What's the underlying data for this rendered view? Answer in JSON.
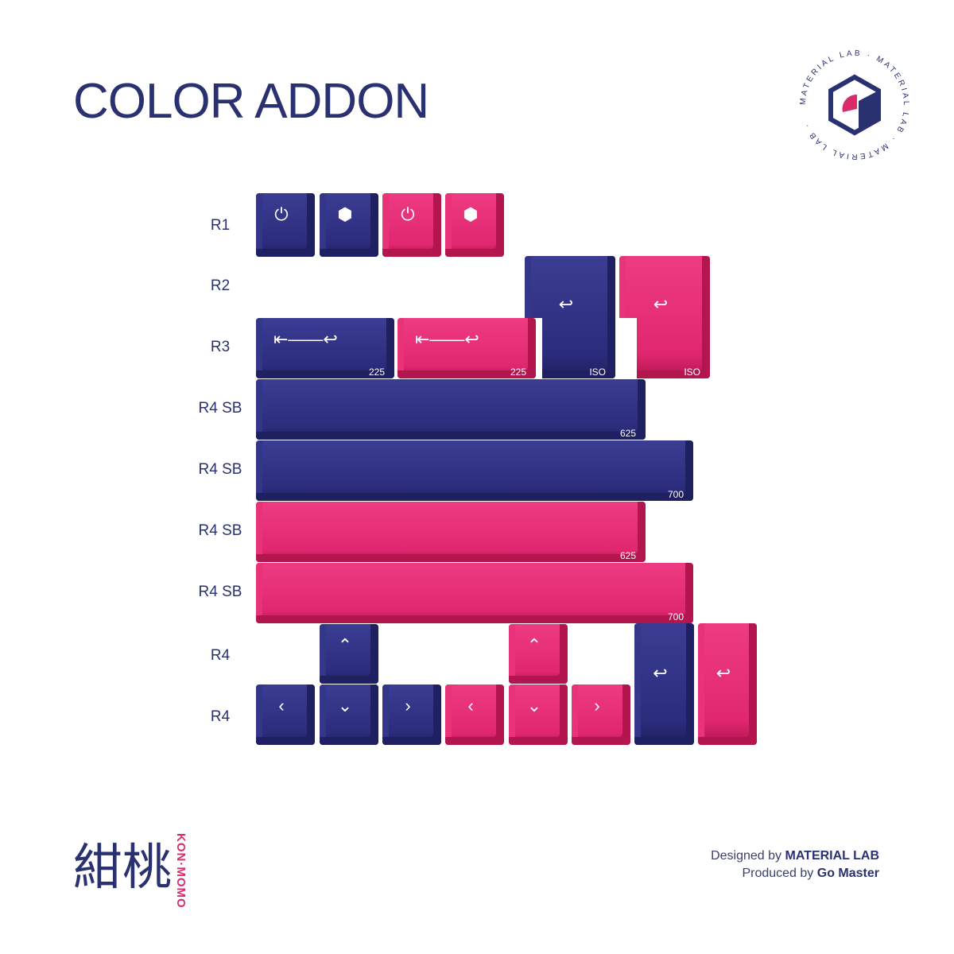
{
  "title": "COLOR ADDON",
  "brand_badge": {
    "ring_text": "MATERIAL LAB · MATERIAL LAB · MATERIAL LAB ·",
    "colors": {
      "navy": "#2a3170",
      "pink": "#d92b6c"
    }
  },
  "colors": {
    "navy_key": "#2b2c7c",
    "pink_key": "#e0276f",
    "text": "#2a3170"
  },
  "row_labels": [
    "R1",
    "R2",
    "R3",
    "R4 SB",
    "R4 SB",
    "R4 SB",
    "R4 SB",
    "R4",
    "R4"
  ],
  "keys": {
    "r1": [
      {
        "color": "navy",
        "icon": "power-timer-icon"
      },
      {
        "color": "navy",
        "icon": "cube-logo-icon"
      },
      {
        "color": "pink",
        "icon": "power-timer-icon"
      },
      {
        "color": "pink",
        "icon": "cube-logo-icon"
      }
    ],
    "r3_225_navy": {
      "icon": "long-enter-arrow-icon",
      "label": "225"
    },
    "r3_225_pink": {
      "icon": "long-enter-arrow-icon",
      "label": "225"
    },
    "iso_navy": {
      "icon": "enter-arrow-icon",
      "label": "ISO"
    },
    "iso_pink": {
      "icon": "enter-arrow-icon",
      "label": "ISO"
    },
    "sb1": {
      "label": "625"
    },
    "sb2": {
      "label": "700"
    },
    "sb3": {
      "label": "625"
    },
    "sb4": {
      "label": "700"
    },
    "arrows": {
      "up": "⌃",
      "left": "‹",
      "down": "⌄",
      "right": "›"
    },
    "enter_symbol": "↩",
    "short_enter": "⇤"
  },
  "logo": {
    "kanji": "紺桃",
    "romaji": "KON·MOMO"
  },
  "credits": {
    "designed_prefix": "Designed by",
    "designed_by": "MATERIAL LAB",
    "produced_prefix": "Produced by",
    "produced_by": "Go Master"
  }
}
